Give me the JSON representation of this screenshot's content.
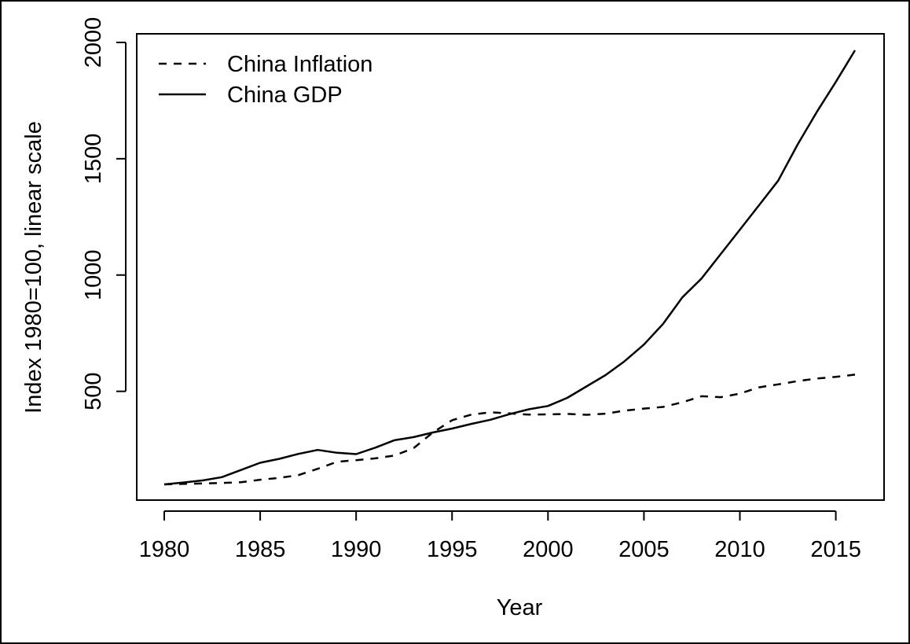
{
  "chart_data": {
    "type": "line",
    "title": "",
    "xlabel": "Year",
    "ylabel": "Index 1980=100, linear scale",
    "xlim": [
      1980,
      2016
    ],
    "ylim": [
      100,
      1966
    ],
    "x_ticks": [
      1980,
      1985,
      1990,
      1995,
      2000,
      2005,
      2010,
      2015
    ],
    "y_ticks": [
      500,
      1000,
      1500,
      2000
    ],
    "grid": false,
    "legend_position": "top-left",
    "x": [
      1980,
      1981,
      1982,
      1983,
      1984,
      1985,
      1986,
      1987,
      1988,
      1989,
      1990,
      1991,
      1992,
      1993,
      1994,
      1995,
      1996,
      1997,
      1998,
      1999,
      2000,
      2001,
      2002,
      2003,
      2004,
      2005,
      2006,
      2007,
      2008,
      2009,
      2010,
      2011,
      2012,
      2013,
      2014,
      2015,
      2016
    ],
    "series": [
      {
        "name": "China Inflation",
        "style": "dashed",
        "color": "#000000",
        "values": [
          100,
          102,
          104,
          106,
          109,
          120,
          128,
          140,
          167,
          197,
          204,
          212,
          224,
          256,
          323,
          376,
          400,
          410,
          405,
          400,
          401,
          403,
          399,
          404,
          417,
          426,
          433,
          453,
          479,
          475,
          490,
          517,
          530,
          544,
          555,
          562,
          572
        ]
      },
      {
        "name": "China GDP",
        "style": "solid",
        "color": "#000000",
        "values": [
          100,
          108,
          117,
          131,
          162,
          193,
          210,
          231,
          248,
          236,
          230,
          258,
          290,
          303,
          323,
          340,
          360,
          378,
          402,
          423,
          437,
          472,
          521,
          570,
          630,
          701,
          790,
          904,
          985,
          1090,
          1195,
          1300,
          1406,
          1560,
          1700,
          1830,
          1966
        ]
      }
    ]
  }
}
